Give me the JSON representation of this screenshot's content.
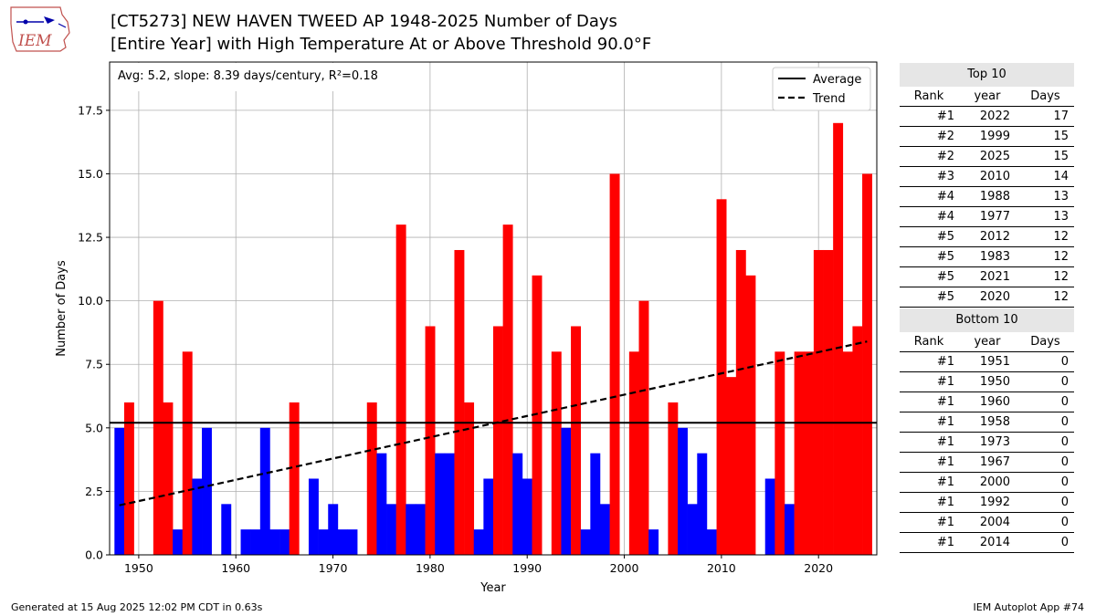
{
  "header": {
    "logo_text": "IEM",
    "title_line1": "[CT5273] NEW HAVEN TWEED AP 1948-2025 Number of Days",
    "title_line2": "[Entire Year] with High Temperature At or Above Threshold 90.0°F"
  },
  "chart_data": {
    "type": "bar",
    "xlabel": "Year",
    "ylabel": "Number of Days",
    "xlim": [
      1947,
      2026
    ],
    "ylim": [
      0,
      19.4
    ],
    "x_ticks": [
      1950,
      1960,
      1970,
      1980,
      1990,
      2000,
      2010,
      2020
    ],
    "y_ticks": [
      "0.0",
      "2.5",
      "5.0",
      "7.5",
      "10.0",
      "12.5",
      "15.0",
      "17.5"
    ],
    "grid": true,
    "stats_label": "Avg: 5.2, slope: 8.39 days/century, R²=0.18",
    "average": 5.2,
    "trend_line": {
      "start": [
        1948,
        1.95
      ],
      "end": [
        2025,
        8.4
      ]
    },
    "colors": {
      "above_average": "#ff0000",
      "below_average": "#0000ff"
    },
    "legend": {
      "placement": "top-right",
      "items": [
        {
          "label": "Average",
          "style": "solid"
        },
        {
          "label": "Trend",
          "style": "dashed"
        }
      ]
    },
    "years": [
      1948,
      1949,
      1950,
      1951,
      1952,
      1953,
      1954,
      1955,
      1956,
      1957,
      1958,
      1959,
      1960,
      1961,
      1962,
      1963,
      1964,
      1965,
      1966,
      1967,
      1968,
      1969,
      1970,
      1971,
      1972,
      1973,
      1974,
      1975,
      1976,
      1977,
      1978,
      1979,
      1980,
      1981,
      1982,
      1983,
      1984,
      1985,
      1986,
      1987,
      1988,
      1989,
      1990,
      1991,
      1992,
      1993,
      1994,
      1995,
      1996,
      1997,
      1998,
      1999,
      2000,
      2001,
      2002,
      2003,
      2004,
      2005,
      2006,
      2007,
      2008,
      2009,
      2010,
      2011,
      2012,
      2013,
      2014,
      2015,
      2016,
      2017,
      2018,
      2019,
      2020,
      2021,
      2022,
      2023,
      2024,
      2025
    ],
    "values": [
      5,
      6,
      0,
      0,
      10,
      6,
      1,
      8,
      3,
      5,
      0,
      2,
      0,
      1,
      1,
      5,
      1,
      1,
      6,
      0,
      3,
      1,
      2,
      1,
      1,
      0,
      6,
      4,
      2,
      13,
      2,
      2,
      9,
      4,
      4,
      12,
      6,
      1,
      3,
      9,
      13,
      4,
      3,
      11,
      0,
      8,
      5,
      9,
      1,
      4,
      2,
      15,
      0,
      8,
      10,
      1,
      0,
      6,
      5,
      2,
      4,
      1,
      14,
      7,
      12,
      11,
      0,
      3,
      8,
      2,
      8,
      8,
      12,
      12,
      17,
      8,
      9,
      15
    ]
  },
  "rankings": {
    "top_title": "Top 10",
    "bottom_title": "Bottom 10",
    "col_rank": "Rank",
    "col_year": "year",
    "col_days": "Days",
    "top": [
      {
        "rank": "#1",
        "year": "2022",
        "days": "17"
      },
      {
        "rank": "#2",
        "year": "1999",
        "days": "15"
      },
      {
        "rank": "#2",
        "year": "2025",
        "days": "15"
      },
      {
        "rank": "#3",
        "year": "2010",
        "days": "14"
      },
      {
        "rank": "#4",
        "year": "1988",
        "days": "13"
      },
      {
        "rank": "#4",
        "year": "1977",
        "days": "13"
      },
      {
        "rank": "#5",
        "year": "2012",
        "days": "12"
      },
      {
        "rank": "#5",
        "year": "1983",
        "days": "12"
      },
      {
        "rank": "#5",
        "year": "2021",
        "days": "12"
      },
      {
        "rank": "#5",
        "year": "2020",
        "days": "12"
      }
    ],
    "bottom": [
      {
        "rank": "#1",
        "year": "1951",
        "days": "0"
      },
      {
        "rank": "#1",
        "year": "1950",
        "days": "0"
      },
      {
        "rank": "#1",
        "year": "1960",
        "days": "0"
      },
      {
        "rank": "#1",
        "year": "1958",
        "days": "0"
      },
      {
        "rank": "#1",
        "year": "1973",
        "days": "0"
      },
      {
        "rank": "#1",
        "year": "1967",
        "days": "0"
      },
      {
        "rank": "#1",
        "year": "2000",
        "days": "0"
      },
      {
        "rank": "#1",
        "year": "1992",
        "days": "0"
      },
      {
        "rank": "#1",
        "year": "2004",
        "days": "0"
      },
      {
        "rank": "#1",
        "year": "2014",
        "days": "0"
      }
    ]
  },
  "footer": {
    "left": "Generated at 15 Aug 2025 12:02 PM CDT in 0.63s",
    "right": "IEM Autoplot App #74"
  }
}
